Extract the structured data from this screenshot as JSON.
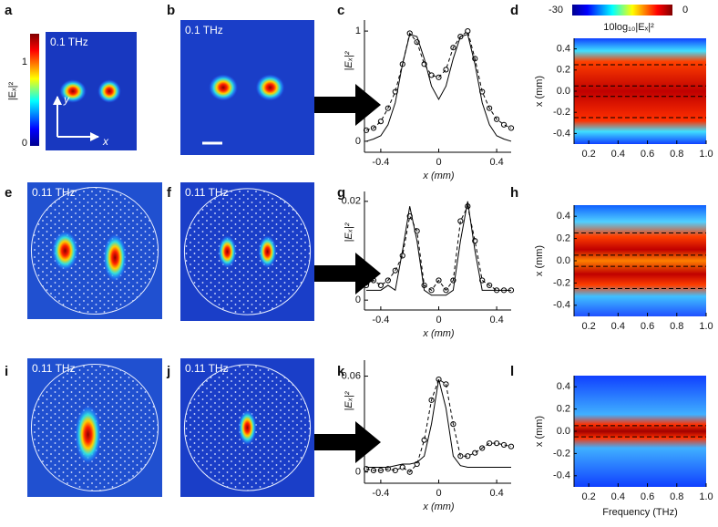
{
  "chart_data": [
    {
      "type": "field-map",
      "label": "a",
      "annotation": "0.1 THz",
      "colorbar": {
        "label": "|Eₓ|²",
        "ticks": [
          0,
          1
        ]
      },
      "axis_labels": [
        "y",
        "x"
      ]
    },
    {
      "type": "field-map",
      "label": "b",
      "annotation": "0.1 THz"
    },
    {
      "type": "line",
      "label": "c",
      "ylabel": "|Eₓ|²",
      "xlabel": "x (mm)",
      "x": [
        -0.5,
        -0.45,
        -0.4,
        -0.35,
        -0.3,
        -0.25,
        -0.2,
        -0.15,
        -0.1,
        -0.05,
        0,
        0.05,
        0.1,
        0.15,
        0.2,
        0.25,
        0.3,
        0.35,
        0.4,
        0.45,
        0.5
      ],
      "series": [
        {
          "color": "#000000",
          "style": "solid",
          "values": [
            0.0,
            0.02,
            0.05,
            0.15,
            0.35,
            0.7,
            0.97,
            0.95,
            0.75,
            0.5,
            0.38,
            0.5,
            0.75,
            0.95,
            0.97,
            0.7,
            0.35,
            0.15,
            0.05,
            0.02,
            0.0
          ]
        },
        {
          "color": "#000000",
          "style": "dashed",
          "markers": true,
          "values": [
            0.1,
            0.12,
            0.18,
            0.3,
            0.45,
            0.7,
            0.98,
            0.9,
            0.7,
            0.6,
            0.58,
            0.65,
            0.85,
            0.95,
            1.0,
            0.75,
            0.45,
            0.3,
            0.2,
            0.15,
            0.12
          ]
        }
      ],
      "xlim": [
        -0.5,
        0.5
      ],
      "ylim": [
        -0.1,
        1.1
      ],
      "xticks": [
        -0.4,
        0,
        0.4
      ],
      "yticks": [
        0,
        1
      ]
    },
    {
      "type": "heatmap",
      "label": "d",
      "ylabel": "x (mm)",
      "colorbar": {
        "label": "10log₁₀|Eₓ|²",
        "ticks": [
          -30,
          0
        ]
      },
      "xlim": [
        0.1,
        1.0
      ],
      "ylim": [
        -0.5,
        0.5
      ],
      "xticks": [
        0.2,
        0.4,
        0.6,
        0.8,
        {
          "value": 1,
          "label": "1.0"
        }
      ],
      "yticks": [
        -0.4,
        -0.2,
        {
          "value": 0,
          "label": "0.0"
        },
        0.2,
        0.4
      ],
      "dashed_lines": [
        0.25,
        0.05,
        -0.05,
        -0.25
      ]
    },
    {
      "type": "field-map",
      "label": "e",
      "annotation": "0.11 THz"
    },
    {
      "type": "field-map",
      "label": "f",
      "annotation": "0.11 THz"
    },
    {
      "type": "line",
      "label": "g",
      "ylabel": "|Eₓ|²",
      "xlabel": "x (mm)",
      "x": [
        -0.5,
        -0.45,
        -0.4,
        -0.35,
        -0.3,
        -0.25,
        -0.2,
        -0.15,
        -0.1,
        -0.05,
        0,
        0.05,
        0.1,
        0.15,
        0.2,
        0.25,
        0.3,
        0.35,
        0.4,
        0.45,
        0.5
      ],
      "series": [
        {
          "color": "#000000",
          "style": "solid",
          "values": [
            0.002,
            0.002,
            0.002,
            0.003,
            0.002,
            0.01,
            0.019,
            0.012,
            0.002,
            0.001,
            0.001,
            0.001,
            0.002,
            0.012,
            0.02,
            0.01,
            0.002,
            0.002,
            0.002,
            0.002,
            0.002
          ]
        },
        {
          "color": "#000000",
          "style": "dashed",
          "markers": true,
          "values": [
            0.003,
            0.004,
            0.003,
            0.004,
            0.006,
            0.009,
            0.017,
            0.014,
            0.003,
            0.002,
            0.004,
            0.002,
            0.004,
            0.016,
            0.019,
            0.012,
            0.004,
            0.003,
            0.002,
            0.002,
            0.002
          ]
        }
      ],
      "xlim": [
        -0.5,
        0.5
      ],
      "ylim": [
        -0.002,
        0.022
      ],
      "xticks": [
        -0.4,
        0,
        0.4
      ],
      "yticks": [
        0,
        0.02
      ]
    },
    {
      "type": "heatmap",
      "label": "h",
      "ylabel": "x (mm)",
      "xlim": [
        0.1,
        1.0
      ],
      "ylim": [
        -0.5,
        0.5
      ],
      "xticks": [
        0.2,
        0.4,
        0.6,
        0.8,
        {
          "value": 1,
          "label": "1.0"
        }
      ],
      "yticks": [
        -0.4,
        -0.2,
        {
          "value": 0,
          "label": "0.0"
        },
        0.2,
        0.4
      ],
      "dashed_lines": [
        0.25,
        0.05,
        -0.05,
        -0.25
      ]
    },
    {
      "type": "field-map",
      "label": "i",
      "annotation": "0.11 THz"
    },
    {
      "type": "field-map",
      "label": "j",
      "annotation": "0.11 THz"
    },
    {
      "type": "line",
      "label": "k",
      "ylabel": "|Eₓ|²",
      "xlabel": "x (mm)",
      "x": [
        -0.5,
        -0.45,
        -0.4,
        -0.35,
        -0.3,
        -0.25,
        -0.2,
        -0.15,
        -0.1,
        -0.05,
        0,
        0.05,
        0.1,
        0.15,
        0.2,
        0.25,
        0.3,
        0.35,
        0.4,
        0.45,
        0.5
      ],
      "series": [
        {
          "color": "#000000",
          "style": "solid",
          "values": [
            0.003,
            0.003,
            0.003,
            0.003,
            0.004,
            0.005,
            0.005,
            0.006,
            0.01,
            0.03,
            0.058,
            0.04,
            0.01,
            0.004,
            0.003,
            0.003,
            0.003,
            0.003,
            0.003,
            0.003,
            0.003
          ]
        },
        {
          "color": "#000000",
          "style": "dashed",
          "markers": true,
          "values": [
            0.002,
            0.001,
            0.001,
            0.002,
            0.001,
            0.003,
            0.0,
            0.005,
            0.02,
            0.045,
            0.058,
            0.055,
            0.03,
            0.01,
            0.01,
            0.012,
            0.015,
            0.018,
            0.018,
            0.017,
            0.016
          ]
        }
      ],
      "xlim": [
        -0.5,
        0.5
      ],
      "ylim": [
        -0.007,
        0.07
      ],
      "xticks": [
        -0.4,
        0,
        0.4
      ],
      "yticks": [
        0,
        0.06
      ]
    },
    {
      "type": "heatmap",
      "label": "l",
      "ylabel": "x (mm)",
      "xlabel": "Frequency (THz)",
      "xlim": [
        0.1,
        1.0
      ],
      "ylim": [
        -0.5,
        0.5
      ],
      "xticks": [
        0.2,
        0.4,
        0.6,
        0.8,
        {
          "value": 1,
          "label": "1.0"
        }
      ],
      "yticks": [
        -0.4,
        -0.2,
        {
          "value": 0,
          "label": "0.0"
        },
        0.2,
        0.4
      ],
      "dashed_lines": [
        0.05,
        -0.05
      ]
    }
  ]
}
